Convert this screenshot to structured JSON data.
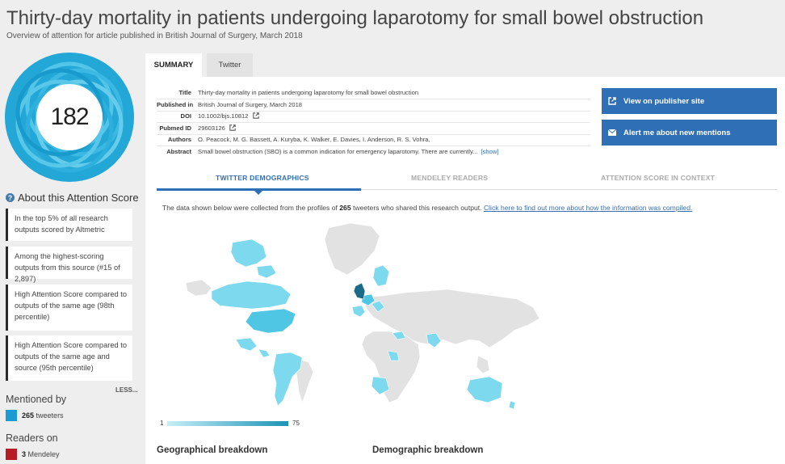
{
  "header": {
    "title": "Thirty-day mortality in patients undergoing laparotomy for small bowel obstruction",
    "subtitle": "Overview of attention for article published in British Journal of Surgery, March 2018"
  },
  "score": {
    "value": "182",
    "colors": [
      "#24a9d8",
      "#4cc4e8",
      "#7ad4ef",
      "#1596c9"
    ]
  },
  "about": {
    "heading": "About this Attention Score",
    "reasons": [
      "In the top 5% of all research outputs scored by Altmetric",
      "Among the highest-scoring outputs from this source (#15 of 2,897)",
      "High Attention Score compared to outputs of the same age (98th percentile)",
      "High Attention Score compared to outputs of the same age and source (95th percentile)"
    ],
    "less_label": "LESS..."
  },
  "mentioned": {
    "heading": "Mentioned by",
    "count": "265",
    "label": "tweeters",
    "color": "#1b9bd1"
  },
  "readers": {
    "heading": "Readers on",
    "count": "3",
    "label": "Mendeley",
    "color": "#b51c24"
  },
  "tabs": [
    {
      "label": "SUMMARY",
      "active": true
    },
    {
      "label": "Twitter",
      "active": false
    }
  ],
  "details": [
    {
      "label": "Title",
      "value": "Thirty-day mortality in patients undergoing laparotomy for small bowel obstruction"
    },
    {
      "label": "Published in",
      "value": "British Journal of Surgery, March 2018"
    },
    {
      "label": "DOI",
      "value": "10.1002/bjs.10812",
      "icon": "external-link-icon"
    },
    {
      "label": "Pubmed ID",
      "value": "29603126",
      "icon": "external-link-icon"
    },
    {
      "label": "Authors",
      "value": "O. Peacock, M. G. Bassett, A. Kuryba, K. Walker, E. Davies, I. Anderson, R. S. Vohra,"
    },
    {
      "label": "Abstract",
      "value": "Small bowel obstruction (SBO) is a common indication for emergency laparotomy. There are currently...",
      "link": "[show]"
    }
  ],
  "actions": {
    "publisher": {
      "label": "View on publisher site",
      "icon": "external-link-icon"
    },
    "alert": {
      "label": "Alert me about new mentions",
      "icon": "envelope-icon"
    },
    "color": "#2f6fb5"
  },
  "subtabs": [
    {
      "label": "TWITTER DEMOGRAPHICS",
      "active": true
    },
    {
      "label": "MENDELEY READERS",
      "active": false
    },
    {
      "label": "ATTENTION SCORE IN CONTEXT",
      "active": false
    }
  ],
  "demographics": {
    "text_before": "The data shown below were collected from the profiles of",
    "count": "265",
    "text_after": "tweeters who shared this research output.",
    "link": "Click here to find out more about how the information was compiled."
  },
  "map_scale": {
    "min": "1",
    "max": "75",
    "low_color": "#c5eff7",
    "high_color": "#1c93b6"
  },
  "breakdowns": {
    "geo": "Geographical breakdown",
    "demo": "Demographic breakdown"
  }
}
